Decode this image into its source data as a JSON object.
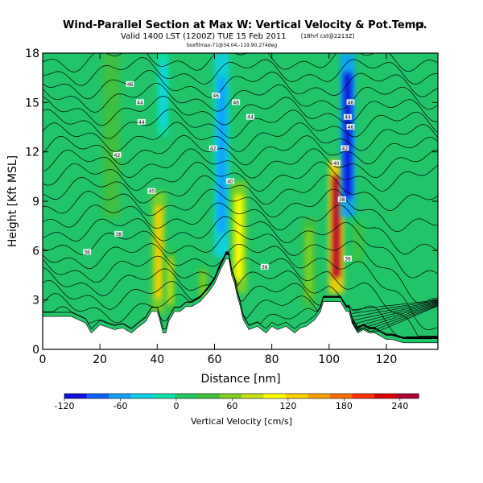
{
  "title": "Wind-Parallel Section at Max W: Vertical Velocity & Pot.Temp.",
  "title_mark": "(C)",
  "subtitle_main": "Valid 1400 LST (1200Z) TUE 15 Feb 2011",
  "subtitle_small": "[18hrf cst@2213Z]",
  "subtitle_tiny": "boxfilmax-71@34.04,-119.90,274deg",
  "colors": {
    "background_field": "#22c46a",
    "terrain": "#ffffff",
    "contour": "#000000"
  },
  "chart_data": {
    "type": "heatmap",
    "title": "Wind-Parallel Section at Max W: Vertical Velocity & Pot.Temp.",
    "xlabel": "Distance [nm]",
    "ylabel": "Height [Kft MSL]",
    "xlim": [
      0,
      138
    ],
    "ylim": [
      0,
      18
    ],
    "x_ticks": [
      "0",
      "20",
      "40",
      "60",
      "80",
      "100",
      "120"
    ],
    "x_tick_values": [
      0,
      20,
      40,
      60,
      80,
      100,
      120
    ],
    "y_ticks": [
      "0",
      "3",
      "6",
      "9",
      "12",
      "15",
      "18"
    ],
    "y_tick_values": [
      0,
      3,
      6,
      9,
      12,
      15,
      18
    ],
    "colorbar": {
      "label": "Vertical Velocity [cm/s]",
      "min": -120,
      "max": 260,
      "tick_labels": [
        "-120",
        "-60",
        "0",
        "60",
        "120",
        "180",
        "240"
      ],
      "tick_values": [
        -120,
        -60,
        0,
        60,
        120,
        180,
        240
      ],
      "colors": [
        "#1010e0",
        "#1060ff",
        "#10a0ff",
        "#10d0e8",
        "#10e0b0",
        "#20c860",
        "#40c040",
        "#80d020",
        "#c8e010",
        "#ffff00",
        "#ffd000",
        "#ffa000",
        "#ff7000",
        "#ff3000",
        "#e00000",
        "#b00030"
      ]
    },
    "terrain": {
      "x": [
        0,
        3,
        10,
        15,
        17,
        20,
        25,
        28,
        31,
        33,
        36,
        38,
        40,
        41,
        42,
        43,
        44,
        46,
        48,
        50,
        52,
        55,
        58,
        60,
        62,
        64,
        65,
        66,
        67,
        68,
        69,
        70,
        72,
        75,
        78,
        80,
        82,
        85,
        88,
        90,
        92,
        95,
        97,
        98,
        100,
        102,
        104,
        106,
        107,
        108,
        110,
        112,
        114,
        116,
        118,
        120,
        122,
        124,
        126,
        128,
        130,
        132,
        134,
        136,
        138
      ],
      "y": [
        2.0,
        2.0,
        2.0,
        1.6,
        1.0,
        1.5,
        1.2,
        1.3,
        1.0,
        1.3,
        1.7,
        2.3,
        2.3,
        1.7,
        1.0,
        1.0,
        1.7,
        2.3,
        2.3,
        2.6,
        2.6,
        2.9,
        3.5,
        4.0,
        4.8,
        5.5,
        5.5,
        4.5,
        4.0,
        3.2,
        2.6,
        1.8,
        1.2,
        1.4,
        1.0,
        1.4,
        1.2,
        1.4,
        1.0,
        1.3,
        1.4,
        1.8,
        2.3,
        2.9,
        2.9,
        2.9,
        2.9,
        2.3,
        2.3,
        1.6,
        1.0,
        1.2,
        1.0,
        1.0,
        0.8,
        0.6,
        0.6,
        0.5,
        0.4,
        0.4,
        0.4,
        0.4,
        0.4,
        0.4,
        0.4
      ]
    },
    "vertical_velocity_features": [
      {
        "x": 40.5,
        "y_bottom": 2.2,
        "y_top": 9.6,
        "value": 120,
        "width": 2.4
      },
      {
        "x": 44.5,
        "y_bottom": 2.3,
        "y_top": 6.0,
        "value": 80,
        "width": 2.0
      },
      {
        "x": 56.0,
        "y_bottom": 3.0,
        "y_top": 5.0,
        "value": 50,
        "width": 2.0
      },
      {
        "x": 62.5,
        "y_bottom": 5.6,
        "y_top": 18.0,
        "value": -70,
        "width": 2.6
      },
      {
        "x": 42.0,
        "y_bottom": 13.0,
        "y_top": 18.0,
        "value": -30,
        "width": 2.0
      },
      {
        "x": 68.5,
        "y_bottom": 3.4,
        "y_top": 10.2,
        "value": 110,
        "width": 2.8
      },
      {
        "x": 93.0,
        "y_bottom": 2.5,
        "y_top": 8.0,
        "value": 55,
        "width": 2.4
      },
      {
        "x": 102.5,
        "y_bottom": 3.4,
        "y_top": 11.5,
        "value": 250,
        "width": 2.6
      },
      {
        "x": 106.5,
        "y_bottom": 8.0,
        "y_top": 18.0,
        "value": -120,
        "width": 2.6
      },
      {
        "x": 110.0,
        "y_bottom": 5.0,
        "y_top": 8.0,
        "value": 40,
        "width": 3.0
      },
      {
        "x": 24.0,
        "y_bottom": 8.0,
        "y_top": 18.0,
        "value": 45,
        "width": 3.0
      }
    ],
    "potential_temperature_contour_labels": [
      {
        "text": "46",
        "x": 30.5,
        "y": 16.1
      },
      {
        "text": "46",
        "x": 60.5,
        "y": 15.4
      },
      {
        "text": "46",
        "x": 67.5,
        "y": 15.0
      },
      {
        "text": "46",
        "x": 107.5,
        "y": 15.0
      },
      {
        "text": "46",
        "x": 107.5,
        "y": 13.5
      },
      {
        "text": "44",
        "x": 34.0,
        "y": 15.0
      },
      {
        "text": "44",
        "x": 34.5,
        "y": 13.8
      },
      {
        "text": "44",
        "x": 72.5,
        "y": 14.1
      },
      {
        "text": "44",
        "x": 106.5,
        "y": 14.1
      },
      {
        "text": "42",
        "x": 26.0,
        "y": 11.8
      },
      {
        "text": "42",
        "x": 59.5,
        "y": 12.2
      },
      {
        "text": "42",
        "x": 105.5,
        "y": 12.2
      },
      {
        "text": "40",
        "x": 38.0,
        "y": 9.6
      },
      {
        "text": "40",
        "x": 65.5,
        "y": 10.2
      },
      {
        "text": "40",
        "x": 102.5,
        "y": 11.3
      },
      {
        "text": "38",
        "x": 26.5,
        "y": 7.0
      },
      {
        "text": "38",
        "x": 104.5,
        "y": 9.1
      },
      {
        "text": "36",
        "x": 15.5,
        "y": 5.9
      },
      {
        "text": "36",
        "x": 77.5,
        "y": 5.0
      },
      {
        "text": "36",
        "x": 106.5,
        "y": 5.5
      }
    ]
  }
}
